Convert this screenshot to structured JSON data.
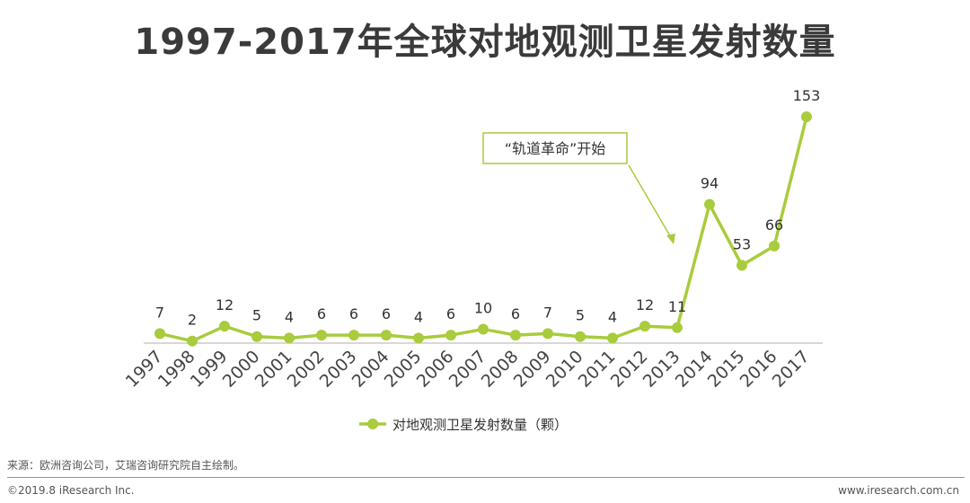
{
  "header": {
    "title": "1997-2017年全球对地观测卫星发射数量"
  },
  "chart_data": {
    "type": "line",
    "categories": [
      "1997",
      "1998",
      "1999",
      "2000",
      "2001",
      "2002",
      "2003",
      "2004",
      "2005",
      "2006",
      "2007",
      "2008",
      "2009",
      "2010",
      "2011",
      "2012",
      "2013",
      "2014",
      "2015",
      "2016",
      "2017"
    ],
    "series": [
      {
        "name": "对地观测卫星发射数量（颗）",
        "values": [
          7,
          2,
          12,
          5,
          4,
          6,
          6,
          6,
          4,
          6,
          10,
          6,
          7,
          5,
          4,
          12,
          11,
          94,
          53,
          66,
          153
        ]
      }
    ],
    "ylim": [
      0,
      153
    ],
    "grid": false,
    "legend_position": "bottom",
    "annotation": {
      "text": "“轨道革命”开始",
      "points_to": "2013"
    },
    "colors": {
      "line": "#a8cc3c",
      "annotation_border": "#a8cc3c",
      "axis": "#cccccc"
    }
  },
  "footer": {
    "source": "来源：欧洲咨询公司，艾瑞咨询研究院自主绘制。",
    "copyright": "©2019.8 iResearch Inc.",
    "website": "www.iresearch.com.cn"
  }
}
